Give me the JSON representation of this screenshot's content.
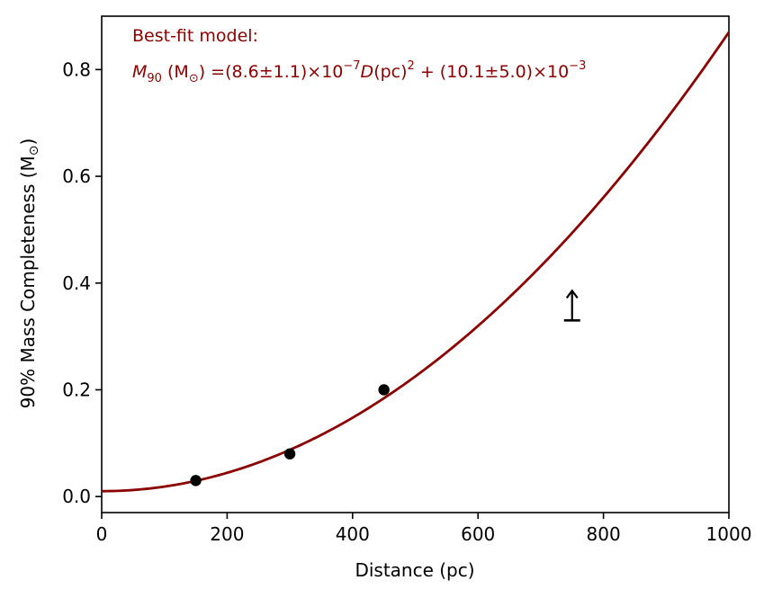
{
  "colors": {
    "curve": "#8b0000",
    "annotation": "#8b0000",
    "points": "#000000",
    "axes": "#000000",
    "background": "#ffffff"
  },
  "chart_data": {
    "type": "scatter",
    "title": "",
    "xlabel": "Distance (pc)",
    "ylabel_prefix": "90% Mass Completeness (M",
    "ylabel_sub": "⊙",
    "ylabel_suffix": ")",
    "xlim": [
      0,
      1000
    ],
    "ylim": [
      -0.03,
      0.9
    ],
    "xticks": [
      0,
      200,
      400,
      600,
      800,
      1000
    ],
    "xtick_labels": [
      "0",
      "200",
      "400",
      "600",
      "800",
      "1000"
    ],
    "yticks": [
      0.0,
      0.2,
      0.4,
      0.6,
      0.8
    ],
    "ytick_labels": [
      "0.0",
      "0.2",
      "0.4",
      "0.6",
      "0.8"
    ],
    "grid": false,
    "points": [
      {
        "x": 150,
        "y": 0.03
      },
      {
        "x": 300,
        "y": 0.08
      },
      {
        "x": 450,
        "y": 0.2
      }
    ],
    "lower_limit": {
      "x": 750,
      "y": 0.33
    },
    "fit": {
      "a": 8.6e-07,
      "b": 0.0101
    },
    "annotation": {
      "line1": "Best-fit model:",
      "m_symbol": "M",
      "m_sub": "90",
      "unit_open": " (M",
      "unit_sub": "⊙",
      "unit_close": ") =(8.6±1.1)×10",
      "exp1": "−7",
      "d_symbol": "D",
      "d_unit": "(pc)",
      "exp2": "2",
      "tail": " + (10.1±5.0)×10",
      "exp3": "−3"
    }
  }
}
